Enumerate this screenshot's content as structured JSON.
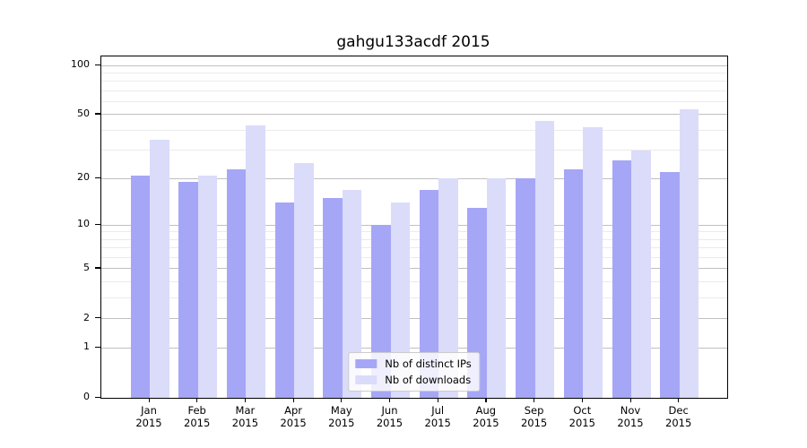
{
  "title": "gahgu133acdf 2015",
  "chart_data": {
    "type": "bar",
    "categories": [
      "Jan",
      "Feb",
      "Mar",
      "Apr",
      "May",
      "Jun",
      "Jul",
      "Aug",
      "Sep",
      "Oct",
      "Nov",
      "Dec"
    ],
    "year_label": "2015",
    "series": [
      {
        "name": "Nb of distinct IPs",
        "color": "#a6a6f7",
        "values": [
          21,
          19,
          23,
          14,
          15,
          10,
          17,
          13,
          20,
          23,
          26,
          22
        ]
      },
      {
        "name": "Nb of downloads",
        "color": "#dbdbfa",
        "values": [
          35,
          21,
          43,
          25,
          17,
          14,
          20,
          20,
          46,
          42,
          30,
          54
        ]
      }
    ],
    "title": "gahgu133acdf 2015",
    "xlabel": "",
    "ylabel": "",
    "yscale": "log1p",
    "ylim": [
      0,
      113.4
    ],
    "y_major_ticks": [
      0,
      1,
      2,
      5,
      10,
      20,
      50,
      100
    ],
    "y_tick_labels": [
      "0",
      "1",
      "2",
      "5",
      "10",
      "20",
      "50",
      "100"
    ],
    "y_minor_gridlines": [
      3,
      4,
      6,
      7,
      8,
      9,
      30,
      40,
      60,
      70,
      80,
      90
    ],
    "grid": true,
    "legend_position": "lower center"
  },
  "legend": {
    "items": [
      {
        "label": "Nb of distinct IPs",
        "color": "#a6a6f7"
      },
      {
        "label": "Nb of downloads",
        "color": "#dbdbfa"
      }
    ]
  },
  "colors": {
    "bar_distinct_ips": "#a6a6f7",
    "bar_downloads": "#dbdbfa",
    "grid_minor": "#ebebeb",
    "grid_major": "#c0c0c0",
    "axis": "#000000",
    "legend_border": "#cccccc"
  }
}
